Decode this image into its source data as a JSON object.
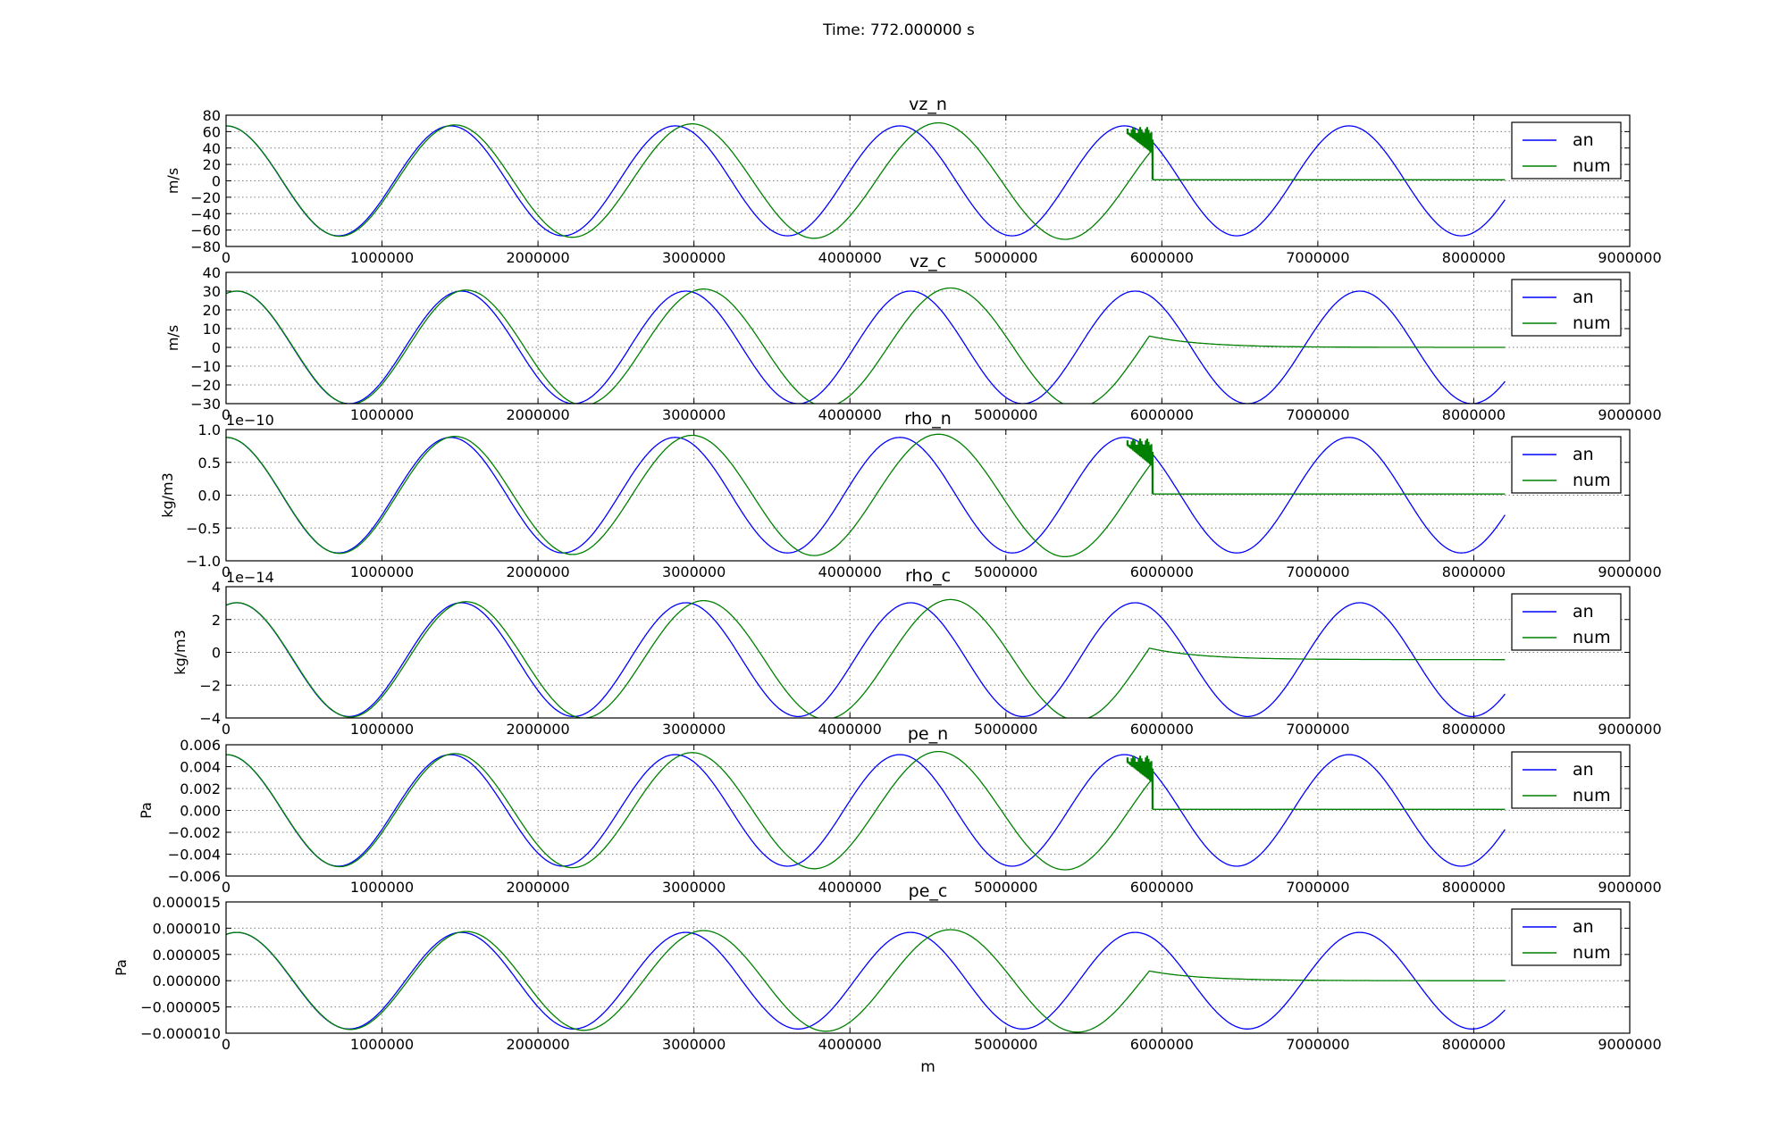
{
  "figure": {
    "suptitle": "Time: 772.000000 s"
  },
  "colors": {
    "an": "#0000ff",
    "num": "#008000",
    "grid": "#808080",
    "axes": "#000000",
    "background": "#ffffff"
  },
  "chart_data": [
    {
      "type": "line",
      "title": "vz_n",
      "xlabel": "",
      "ylabel": "m/s",
      "offset_text": "",
      "xlim": [
        0,
        9000000
      ],
      "ylim": [
        -80,
        80
      ],
      "xticks": [
        "0",
        "1000000",
        "2000000",
        "3000000",
        "4000000",
        "5000000",
        "6000000",
        "7000000",
        "8000000",
        "9000000"
      ],
      "yticks": [
        "80",
        "60",
        "40",
        "20",
        "0",
        "−20",
        "−40",
        "−60",
        "−80"
      ],
      "grid": true,
      "legend": "upper right",
      "wave": {
        "amplitude": 67,
        "phase": 0.2,
        "wavelength": 1440000,
        "x_end": 8200000,
        "num_stretch": 0.0125,
        "num_front": 5940000,
        "num_tail": "flat",
        "num_tail_decay": 0,
        "spikes": true
      },
      "series": [
        {
          "name": "an",
          "color": "#0000ff",
          "description": "analytic sinusoid, amplitude ~67 m/s, wavelength ~1.44e6 m, to x = 8.2e6"
        },
        {
          "name": "num",
          "color": "#008000",
          "description": "numerical solution follows analytic until x ~ 5.94e6 m, then ~0"
        }
      ]
    },
    {
      "type": "line",
      "title": "vz_c",
      "xlabel": "",
      "ylabel": "m/s",
      "offset_text": "",
      "xlim": [
        0,
        9000000
      ],
      "ylim": [
        -30,
        40
      ],
      "xticks": [
        "0",
        "1000000",
        "2000000",
        "3000000",
        "4000000",
        "5000000",
        "6000000",
        "7000000",
        "8000000",
        "9000000"
      ],
      "yticks": [
        "40",
        "30",
        "20",
        "10",
        "0",
        "−10",
        "−20",
        "−30"
      ],
      "grid": true,
      "legend": "upper right",
      "wave": {
        "amplitude": 30,
        "phase": -0.1,
        "wavelength": 1440000,
        "x_end": 8200000,
        "num_stretch": 0.0125,
        "num_front": 5920000,
        "num_tail": "decay",
        "num_tail_decay": 330000,
        "spikes": false
      },
      "series": [
        {
          "name": "an",
          "color": "#0000ff",
          "description": "analytic sinusoid, amplitude ~30 m/s"
        },
        {
          "name": "num",
          "color": "#008000",
          "description": "numerical solution, exponential decay to 0 after x ~ 5.92e6 m"
        }
      ]
    },
    {
      "type": "line",
      "title": "rho_n",
      "xlabel": "",
      "ylabel": "kg/m3",
      "offset_text": "1e−10",
      "xlim": [
        0,
        9000000
      ],
      "ylim": [
        -1.0,
        1.0
      ],
      "xticks": [
        "0",
        "1000000",
        "2000000",
        "3000000",
        "4000000",
        "5000000",
        "6000000",
        "7000000",
        "8000000",
        "9000000"
      ],
      "yticks": [
        "1.0",
        "0.5",
        "0.0",
        "−0.5",
        "−1.0"
      ],
      "grid": true,
      "legend": "upper right",
      "wave": {
        "amplitude": 0.88,
        "phase": 0.2,
        "wavelength": 1440000,
        "x_end": 8200000,
        "num_stretch": 0.0125,
        "num_front": 5940000,
        "num_tail": "flat",
        "num_tail_decay": 0,
        "spikes": true
      },
      "series": [
        {
          "name": "an",
          "color": "#0000ff",
          "description": "analytic sinusoid, amplitude ~0.88e-10 kg/m3"
        },
        {
          "name": "num",
          "color": "#008000",
          "description": "numerical solution, ~0 after x ~ 5.94e6 m"
        }
      ]
    },
    {
      "type": "line",
      "title": "rho_c",
      "xlabel": "",
      "ylabel": "kg/m3",
      "offset_text": "1e−14",
      "xlim": [
        0,
        9000000
      ],
      "ylim": [
        -4,
        5
      ],
      "xticks": [
        "0",
        "1000000",
        "2000000",
        "3000000",
        "4000000",
        "5000000",
        "6000000",
        "7000000",
        "8000000",
        "9000000"
      ],
      "yticks": [
        "4",
        "2",
        "0",
        "−2",
        "−4"
      ],
      "grid": true,
      "legend": "upper right",
      "wave": {
        "amplitude": 3.9,
        "phase": -0.1,
        "wavelength": 1440000,
        "x_end": 8200000,
        "num_stretch": 0.0125,
        "num_front": 5920000,
        "num_tail": "decay",
        "num_tail_decay": 330000,
        "spikes": false
      },
      "series": [
        {
          "name": "an",
          "color": "#0000ff",
          "description": "analytic sinusoid, amplitude ~3.9e-14 kg/m3"
        },
        {
          "name": "num",
          "color": "#008000",
          "description": "numerical solution, decaying to 0"
        }
      ]
    },
    {
      "type": "line",
      "title": "pe_n",
      "xlabel": "",
      "ylabel": "Pa",
      "offset_text": "",
      "xlim": [
        0,
        9000000
      ],
      "ylim": [
        -0.006,
        0.006
      ],
      "xticks": [
        "0",
        "1000000",
        "2000000",
        "3000000",
        "4000000",
        "5000000",
        "6000000",
        "7000000",
        "8000000",
        "9000000"
      ],
      "yticks": [
        "0.006",
        "0.004",
        "0.002",
        "0.000",
        "−0.002",
        "−0.004",
        "−0.006"
      ],
      "grid": true,
      "legend": "upper right",
      "wave": {
        "amplitude": 0.0051,
        "phase": 0.2,
        "wavelength": 1440000,
        "x_end": 8200000,
        "num_stretch": 0.0125,
        "num_front": 5940000,
        "num_tail": "flat",
        "num_tail_decay": 0,
        "spikes": true
      },
      "series": [
        {
          "name": "an",
          "color": "#0000ff",
          "description": "analytic sinusoid, amplitude ~0.0051 Pa"
        },
        {
          "name": "num",
          "color": "#008000",
          "description": "numerical solution, ~0 after x ~ 5.94e6 m"
        }
      ]
    },
    {
      "type": "line",
      "title": "pe_c",
      "xlabel": "m",
      "ylabel": "Pa",
      "offset_text": "",
      "xlim": [
        0,
        9000000
      ],
      "ylim": [
        -1e-05,
        1.5e-05
      ],
      "xticks": [
        "0",
        "1000000",
        "2000000",
        "3000000",
        "4000000",
        "5000000",
        "6000000",
        "7000000",
        "8000000",
        "9000000"
      ],
      "yticks": [
        "0.000015",
        "0.000010",
        "0.000005",
        "0.000000",
        "−0.000005",
        "−0.000010"
      ],
      "grid": true,
      "legend": "upper right",
      "wave": {
        "amplitude": 9.2e-06,
        "phase": -0.1,
        "wavelength": 1440000,
        "x_end": 8200000,
        "num_stretch": 0.0125,
        "num_front": 5920000,
        "num_tail": "decay",
        "num_tail_decay": 330000,
        "spikes": false
      },
      "series": [
        {
          "name": "an",
          "color": "#0000ff",
          "description": "analytic sinusoid, amplitude ~9.2e-6 Pa"
        },
        {
          "name": "num",
          "color": "#008000",
          "description": "numerical solution, decaying to 0"
        }
      ]
    }
  ]
}
